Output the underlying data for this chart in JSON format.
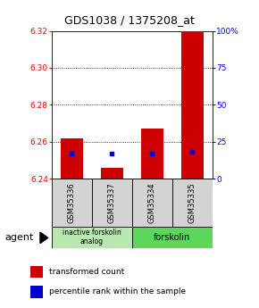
{
  "title": "GDS1038 / 1375208_at",
  "samples": [
    "GSM35336",
    "GSM35337",
    "GSM35334",
    "GSM35335"
  ],
  "bar_bottoms": [
    6.24,
    6.24,
    6.24,
    6.24
  ],
  "bar_tops": [
    6.262,
    6.246,
    6.267,
    6.32
  ],
  "blue_y": [
    6.2535,
    6.2535,
    6.2535,
    6.2545
  ],
  "ylim": [
    6.24,
    6.32
  ],
  "yticks_left": [
    6.24,
    6.26,
    6.28,
    6.3,
    6.32
  ],
  "yticks_right": [
    0,
    25,
    50,
    75,
    100
  ],
  "ytick_right_labels": [
    "0",
    "25",
    "50",
    "75",
    "100%"
  ],
  "bar_color": "#cc0000",
  "blue_color": "#0000cc",
  "group1_label": "inactive forskolin\nanalog",
  "group2_label": "forskolin",
  "agent_label": "agent",
  "legend_red": "transformed count",
  "legend_blue": "percentile rank within the sample",
  "title_fontsize": 9,
  "axis_fontsize": 6.5,
  "sample_fontsize": 6,
  "group_fontsize": 7,
  "legend_fontsize": 6.5,
  "agent_fontsize": 8
}
